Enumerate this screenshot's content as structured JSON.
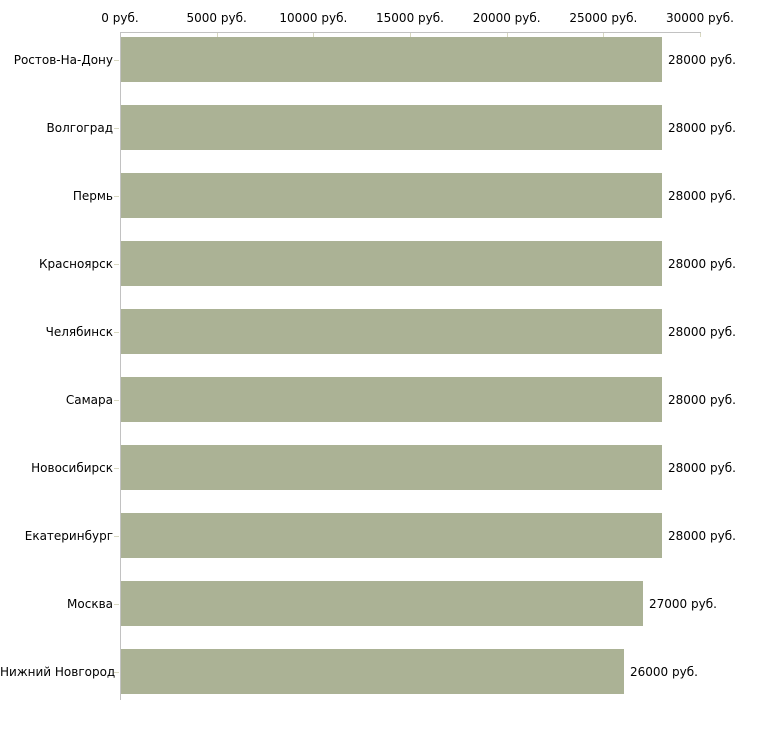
{
  "chart_data": {
    "type": "bar",
    "orientation": "horizontal",
    "title": "",
    "xlabel": "",
    "ylabel": "",
    "unit": "руб.",
    "xlim": [
      0,
      30000
    ],
    "x_tick_values": [
      0,
      5000,
      10000,
      15000,
      20000,
      25000,
      30000
    ],
    "x_tick_labels": [
      "0 руб.",
      "5000 руб.",
      "10000 руб.",
      "15000 руб.",
      "20000 руб.",
      "25000 руб.",
      "30000 руб."
    ],
    "categories": [
      "Ростов-На-Дону",
      "Волгоград",
      "Пермь",
      "Красноярск",
      "Челябинск",
      "Самара",
      "Новосибирск",
      "Екатеринбург",
      "Москва",
      "Нижний Новгород"
    ],
    "values": [
      28000,
      28000,
      28000,
      28000,
      28000,
      28000,
      28000,
      28000,
      27000,
      26000
    ],
    "value_labels": [
      "28000 руб.",
      "28000 руб.",
      "28000 руб.",
      "28000 руб.",
      "28000 руб.",
      "28000 руб.",
      "28000 руб.",
      "28000 руб.",
      "27000 руб.",
      "26000 руб."
    ],
    "grid": false,
    "legend": null,
    "colors": {
      "bar": "#abb295",
      "axis_line": "#c2c2c2",
      "tick_mark": "#d8d8c0",
      "text": "#000000",
      "background": "#ffffff"
    }
  }
}
